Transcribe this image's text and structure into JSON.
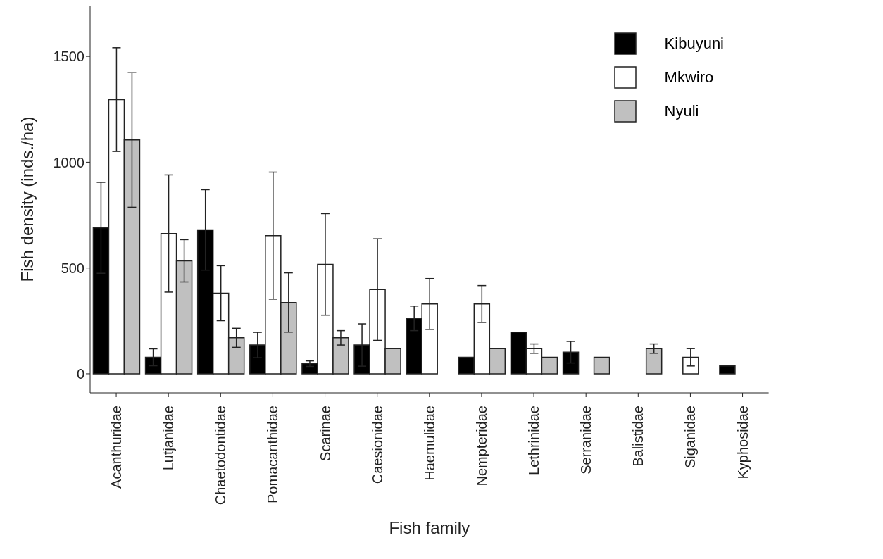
{
  "chart_data": {
    "type": "bar",
    "xlabel": "Fish family",
    "ylabel": "Fish density (inds./ha)",
    "categories": [
      "Acanthuridae",
      "Lutjanidae",
      "Chaetodontidae",
      "Pomacanthidae",
      "Scarinae",
      "Caesionidae",
      "Haemulidae",
      "Nempteridae",
      "Lethrinidae",
      "Serranidae",
      "Balistidae",
      "Siganidae",
      "Kyphosidae"
    ],
    "series": [
      {
        "name": "Kibuyuni",
        "color": "#000000",
        "values": [
          690,
          78,
          680,
          136,
          48,
          136,
          262,
          78,
          197,
          102,
          0,
          0,
          37
        ],
        "errors": [
          215,
          40,
          190,
          60,
          13,
          100,
          58,
          null,
          null,
          51,
          null,
          null,
          null
        ]
      },
      {
        "name": "Mkwiro",
        "color": "#ffffff",
        "values": [
          1296,
          663,
          381,
          653,
          517,
          398,
          330,
          330,
          119,
          0,
          0,
          78,
          0
        ],
        "errors": [
          245,
          277,
          130,
          300,
          240,
          240,
          120,
          87,
          22,
          null,
          null,
          41,
          null
        ]
      },
      {
        "name": "Nyuli",
        "color": "#c0c0c0",
        "values": [
          1105,
          534,
          170,
          337,
          170,
          119,
          0,
          119,
          78,
          78,
          119,
          0,
          0
        ],
        "errors": [
          318,
          100,
          45,
          140,
          34,
          null,
          null,
          null,
          null,
          null,
          22,
          null,
          null
        ]
      }
    ],
    "ylim": [
      -90,
      1740
    ],
    "yticks": [
      0,
      500,
      1000,
      1500
    ],
    "grid": false,
    "legend": "top right"
  }
}
